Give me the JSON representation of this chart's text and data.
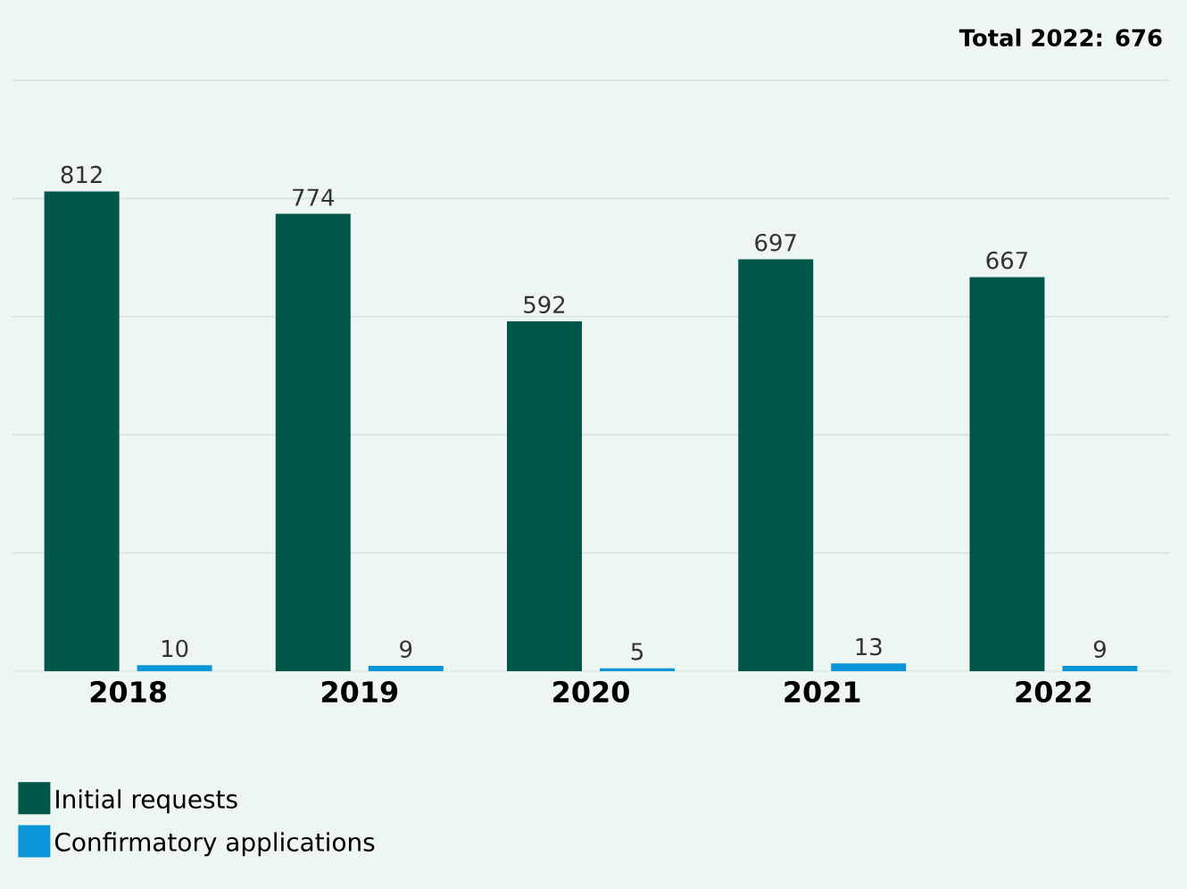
{
  "chart_data": {
    "type": "bar",
    "title": "Total 2022: 676",
    "categories": [
      "2018",
      "2019",
      "2020",
      "2021",
      "2022"
    ],
    "series": [
      {
        "name": "Initial requests",
        "color": "#00574a",
        "values": [
          812,
          774,
          592,
          697,
          667
        ]
      },
      {
        "name": "Confirmatory applications",
        "color": "#0a96d8",
        "values": [
          10,
          9,
          5,
          13,
          9
        ]
      }
    ],
    "ylim": [
      0,
      1000
    ],
    "yticks": [
      {
        "value": 200,
        "label": null
      },
      {
        "value": 400,
        "label": null
      },
      {
        "value": 600,
        "label": null
      },
      {
        "value": 800,
        "label": null
      },
      {
        "value": 1000,
        "label": null
      }
    ],
    "grid": "y",
    "tick_labels": "x",
    "data_labels": true,
    "legend": "bottom"
  }
}
